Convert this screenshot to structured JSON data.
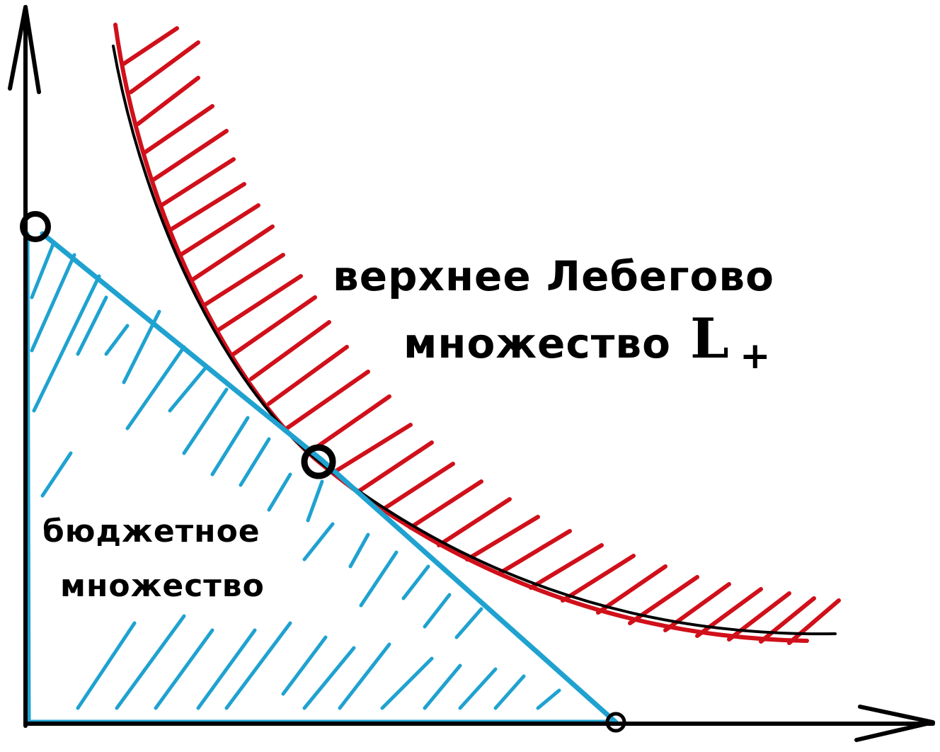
{
  "labels": {
    "upper_set_line1": "верхнее Лебегово",
    "upper_set_line2": "множество",
    "upper_set_symbol": "L",
    "upper_set_subscript": "+",
    "budget_set_line1": "бюджетное",
    "budget_set_line2": "множество"
  },
  "colors": {
    "axes": "#000000",
    "budget": "#1fa2d0",
    "upper_set": "#d0101a"
  }
}
